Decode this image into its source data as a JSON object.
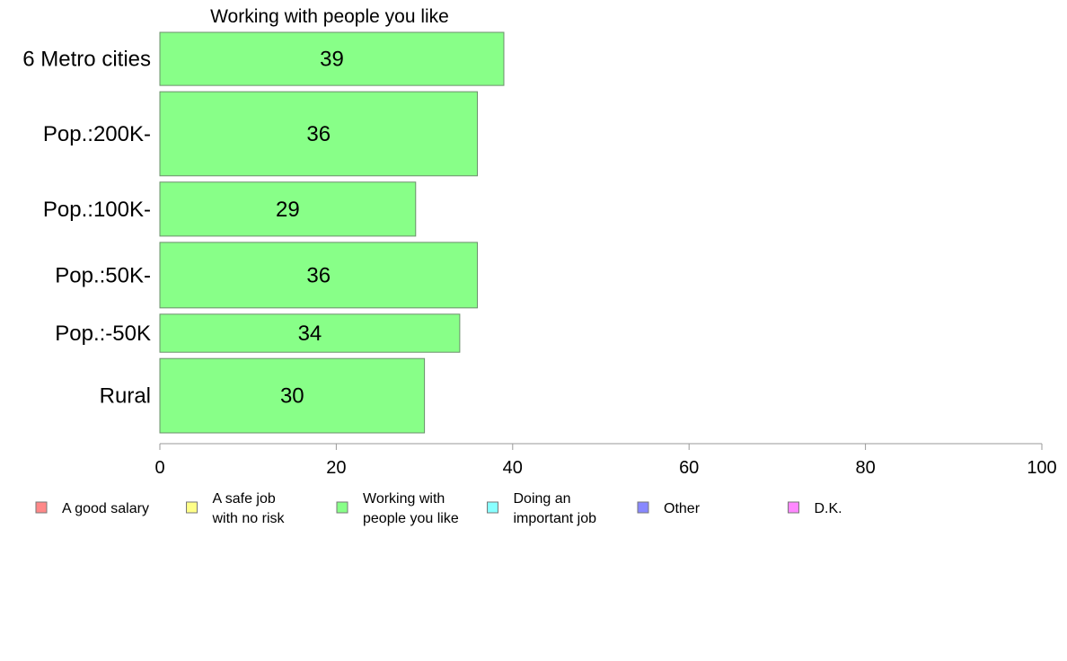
{
  "chart_data": {
    "type": "bar",
    "orientation": "horizontal",
    "title": "Working with people you like",
    "categories": [
      "6 Metro cities",
      "Pop.:200K-",
      "Pop.:100K-",
      "Pop.:50K-",
      "Pop.:-50K",
      "Rural"
    ],
    "values": [
      39,
      36,
      29,
      36,
      34,
      30
    ],
    "labels": [
      "39",
      "36",
      "29",
      "36",
      "34",
      "30"
    ],
    "relative_widths": [
      0.6,
      0.95,
      0.61,
      0.74,
      0.43,
      0.84
    ],
    "xlim": [
      0,
      100
    ],
    "x_ticks": [
      0,
      20,
      40,
      60,
      80,
      100
    ],
    "x_tick_labels": [
      "0",
      "20",
      "40",
      "60",
      "80",
      "100"
    ],
    "xlabel": "",
    "ylabel": "",
    "grid": false,
    "bar_color": "#88ff88",
    "bar_edge_color": "#6b8f6b",
    "legend_position": "bottom",
    "legend": [
      {
        "lines": [
          "A good salary"
        ],
        "color": "#ff8888"
      },
      {
        "lines": [
          "A safe job",
          "with no risk"
        ],
        "color": "#ffff88"
      },
      {
        "lines": [
          "Working with",
          "people you like"
        ],
        "color": "#88ff88"
      },
      {
        "lines": [
          "Doing an",
          "important job"
        ],
        "color": "#88ffff"
      },
      {
        "lines": [
          "Other"
        ],
        "color": "#8888ff"
      },
      {
        "lines": [
          "D.K."
        ],
        "color": "#ff88ff"
      }
    ]
  }
}
